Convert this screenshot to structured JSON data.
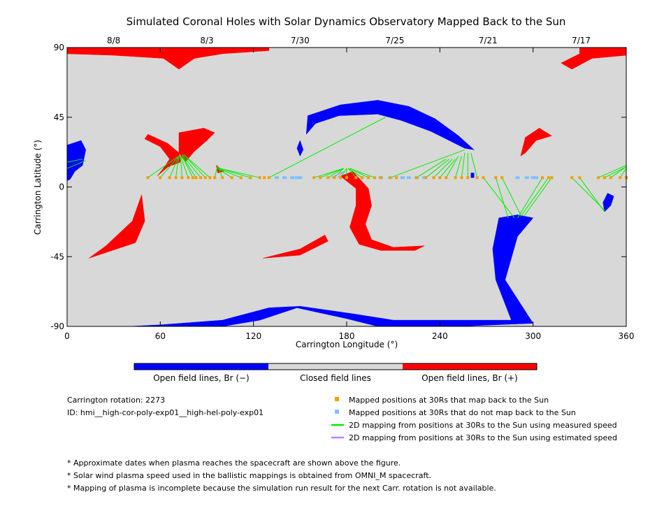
{
  "chart_data": {
    "type": "map",
    "title": "Simulated Coronal Holes with Solar Dynamics Observatory Mapped Back to the Sun",
    "xlabel": "Carrington Longitude (°)",
    "ylabel": "Carrington Latitude (°)",
    "xlim": [
      0,
      360
    ],
    "ylim": [
      -90,
      90
    ],
    "x_ticks": [
      0,
      60,
      120,
      180,
      240,
      300,
      360
    ],
    "y_ticks": [
      -90,
      -45,
      0,
      45,
      90
    ],
    "top_axis_dates": [
      {
        "label": "8/8",
        "lon": 30
      },
      {
        "label": "8/3",
        "lon": 90
      },
      {
        "label": "7/30",
        "lon": 150
      },
      {
        "label": "7/25",
        "lon": 211
      },
      {
        "label": "7/21",
        "lon": 271
      },
      {
        "label": "7/17",
        "lon": 331
      }
    ],
    "background_color": "#d8d8d8",
    "colorbar": {
      "segments": [
        {
          "label": "Open field lines, Br (−)",
          "color": "#0000ff"
        },
        {
          "label": "Closed field lines",
          "color": "#d8d8d8"
        },
        {
          "label": "Open field lines, Br (+)",
          "color": "#ff0000"
        }
      ]
    },
    "coronal_holes": [
      {
        "polarity": "positive",
        "color": "#ff0000",
        "points": [
          [
            0,
            90
          ],
          [
            130,
            90
          ],
          [
            130,
            88
          ],
          [
            100,
            86
          ],
          [
            82,
            83
          ],
          [
            72,
            76
          ],
          [
            62,
            83
          ],
          [
            30,
            85
          ],
          [
            0,
            86
          ]
        ]
      },
      {
        "polarity": "positive",
        "color": "#ff0000",
        "points": [
          [
            330,
            90
          ],
          [
            360,
            90
          ],
          [
            360,
            85
          ],
          [
            338,
            83
          ],
          [
            325,
            76
          ],
          [
            318,
            80
          ],
          [
            330,
            86
          ]
        ]
      },
      {
        "polarity": "positive",
        "color": "#ff0000",
        "points": [
          [
            52,
            34
          ],
          [
            65,
            28
          ],
          [
            72,
            22
          ],
          [
            73,
            16
          ],
          [
            65,
            13
          ],
          [
            58,
            7
          ],
          [
            62,
            12
          ],
          [
            66,
            18
          ],
          [
            60,
            26
          ],
          [
            50,
            31
          ]
        ]
      },
      {
        "polarity": "positive",
        "color": "#ff0000",
        "points": [
          [
            72,
            35
          ],
          [
            88,
            38
          ],
          [
            95,
            35
          ],
          [
            90,
            30
          ],
          [
            82,
            23
          ],
          [
            76,
            16
          ],
          [
            72,
            22
          ]
        ]
      },
      {
        "polarity": "positive",
        "color": "#ff0000",
        "points": [
          [
            48,
            -5
          ],
          [
            42,
            -22
          ],
          [
            25,
            -38
          ],
          [
            14,
            -46
          ],
          [
            26,
            -42
          ],
          [
            44,
            -36
          ],
          [
            50,
            -22
          ]
        ]
      },
      {
        "polarity": "positive",
        "color": "#ff0000",
        "points": [
          [
            126,
            -46
          ],
          [
            150,
            -40
          ],
          [
            166,
            -31
          ],
          [
            168,
            -35
          ],
          [
            150,
            -44
          ]
        ]
      },
      {
        "polarity": "positive",
        "color": "#ff0000",
        "points": [
          [
            176,
            7
          ],
          [
            184,
            10
          ],
          [
            194,
            -1
          ],
          [
            196,
            -12
          ],
          [
            192,
            -24
          ],
          [
            196,
            -34
          ],
          [
            210,
            -39
          ],
          [
            230,
            -38
          ],
          [
            224,
            -41
          ],
          [
            202,
            -41
          ],
          [
            188,
            -37
          ],
          [
            182,
            -26
          ],
          [
            186,
            -12
          ],
          [
            186,
            -1
          ]
        ]
      },
      {
        "polarity": "positive",
        "color": "#ff0000",
        "points": [
          [
            295,
            32
          ],
          [
            304,
            38
          ],
          [
            312,
            33
          ],
          [
            302,
            30
          ],
          [
            295,
            22
          ],
          [
            292,
            20
          ]
        ]
      },
      {
        "polarity": "positive",
        "color": "#ff0000",
        "points": [
          [
            96,
            14
          ],
          [
            101,
            10
          ],
          [
            97,
            9
          ]
        ]
      },
      {
        "polarity": "negative",
        "color": "#0000ff",
        "points": [
          [
            0,
            27
          ],
          [
            9,
            30
          ],
          [
            12,
            24
          ],
          [
            10,
            14
          ],
          [
            5,
            10
          ],
          [
            2,
            5
          ],
          [
            0,
            4
          ]
        ]
      },
      {
        "polarity": "negative",
        "color": "#0000ff",
        "points": [
          [
            155,
            46
          ],
          [
            176,
            53
          ],
          [
            200,
            56
          ],
          [
            220,
            52
          ],
          [
            237,
            44
          ],
          [
            252,
            33
          ],
          [
            262,
            24
          ],
          [
            256,
            25
          ],
          [
            246,
            30
          ],
          [
            234,
            36
          ],
          [
            215,
            43
          ],
          [
            200,
            47
          ],
          [
            175,
            46
          ],
          [
            160,
            41
          ],
          [
            154,
            34
          ]
        ]
      },
      {
        "polarity": "negative",
        "color": "#0000ff",
        "points": [
          [
            150,
            30
          ],
          [
            152,
            24
          ],
          [
            150,
            20
          ],
          [
            148,
            25
          ]
        ]
      },
      {
        "polarity": "negative",
        "color": "#0000ff",
        "points": [
          [
            278,
            -20
          ],
          [
            290,
            -18
          ],
          [
            300,
            -20
          ],
          [
            290,
            -32
          ],
          [
            282,
            -60
          ],
          [
            300,
            -88
          ],
          [
            250,
            -90
          ],
          [
            200,
            -90
          ],
          [
            180,
            -85
          ],
          [
            148,
            -78
          ],
          [
            124,
            -86
          ],
          [
            100,
            -90
          ],
          [
            40,
            -90
          ],
          [
            60,
            -89
          ],
          [
            100,
            -86
          ],
          [
            130,
            -78
          ],
          [
            150,
            -77
          ],
          [
            185,
            -82
          ],
          [
            210,
            -86
          ],
          [
            250,
            -86
          ],
          [
            286,
            -86
          ],
          [
            276,
            -60
          ],
          [
            274,
            -40
          ]
        ]
      },
      {
        "polarity": "negative",
        "color": "#0000ff",
        "points": [
          [
            346,
            -16
          ],
          [
            350,
            -12
          ],
          [
            352,
            -6
          ],
          [
            348,
            -4
          ],
          [
            345,
            -10
          ]
        ]
      },
      {
        "polarity": "negative",
        "color": "#0000ff",
        "points": [
          [
            260,
            9
          ],
          [
            262,
            9
          ],
          [
            262,
            6
          ],
          [
            260,
            6
          ]
        ]
      }
    ],
    "mapped_points_map_back": {
      "color": "#f0a000",
      "lon": [
        52,
        60,
        66,
        70,
        74,
        78,
        81,
        83,
        86,
        89,
        92,
        95,
        100,
        106,
        112,
        118,
        124,
        127,
        130,
        159,
        163,
        168,
        172,
        176,
        180,
        186,
        190,
        194,
        198,
        202,
        208,
        212,
        225,
        231,
        236,
        240,
        244,
        250,
        254,
        258,
        264,
        268,
        276,
        280,
        306,
        310,
        312,
        325,
        330,
        342,
        346,
        350,
        356,
        360
      ],
      "lat": [
        6,
        6,
        6,
        6,
        6,
        6,
        6,
        6,
        6,
        6,
        6,
        6,
        6,
        6,
        6,
        6,
        6,
        6,
        6,
        6,
        6,
        6,
        6,
        6,
        6,
        6,
        6,
        6,
        6,
        6,
        6,
        6,
        6,
        6,
        6,
        6,
        6,
        6,
        6,
        6,
        6,
        6,
        6,
        6,
        6,
        6,
        6,
        6,
        6,
        6,
        6,
        6,
        6,
        6
      ]
    },
    "mapped_points_no_map_back": {
      "color": "#80c0ff",
      "lon": [
        135,
        140,
        145,
        148,
        150,
        202,
        208,
        216,
        220,
        225,
        230,
        290,
        296,
        300,
        302
      ],
      "lat": [
        6,
        6,
        6,
        6,
        6,
        6,
        6,
        6,
        6,
        6,
        6,
        6,
        6,
        6,
        6
      ]
    },
    "mappings_measured_speed": {
      "color": "#00ee00",
      "segments": [
        [
          0,
          12,
          12,
          17
        ],
        [
          0,
          16,
          10,
          18
        ],
        [
          52,
          6,
          72,
          20
        ],
        [
          60,
          6,
          72,
          20
        ],
        [
          66,
          6,
          72,
          20
        ],
        [
          70,
          6,
          72,
          20
        ],
        [
          74,
          6,
          73,
          20
        ],
        [
          78,
          6,
          73,
          20
        ],
        [
          81,
          6,
          74,
          20
        ],
        [
          83,
          6,
          74,
          20
        ],
        [
          86,
          6,
          74,
          21
        ],
        [
          89,
          6,
          75,
          21
        ],
        [
          92,
          6,
          75,
          21
        ],
        [
          95,
          6,
          97,
          14
        ],
        [
          100,
          6,
          97,
          13
        ],
        [
          106,
          6,
          97,
          12
        ],
        [
          112,
          6,
          97,
          12
        ],
        [
          118,
          6,
          98,
          12
        ],
        [
          124,
          6,
          98,
          12
        ],
        [
          130,
          6,
          205,
          45
        ],
        [
          159,
          6,
          178,
          12
        ],
        [
          163,
          6,
          178,
          12
        ],
        [
          168,
          6,
          178,
          12
        ],
        [
          172,
          6,
          178,
          12
        ],
        [
          176,
          6,
          180,
          12
        ],
        [
          180,
          6,
          180,
          12
        ],
        [
          186,
          6,
          181,
          12
        ],
        [
          190,
          6,
          181,
          12
        ],
        [
          194,
          6,
          182,
          12
        ],
        [
          198,
          6,
          182,
          12
        ],
        [
          208,
          6,
          256,
          24
        ],
        [
          225,
          6,
          244,
          18
        ],
        [
          231,
          6,
          246,
          18
        ],
        [
          236,
          6,
          248,
          18
        ],
        [
          240,
          6,
          250,
          18
        ],
        [
          244,
          6,
          252,
          20
        ],
        [
          250,
          6,
          254,
          20
        ],
        [
          254,
          6,
          256,
          22
        ],
        [
          258,
          6,
          258,
          22
        ],
        [
          264,
          6,
          260,
          22
        ],
        [
          268,
          6,
          288,
          -20
        ],
        [
          276,
          6,
          284,
          -20
        ],
        [
          280,
          6,
          292,
          -18
        ],
        [
          306,
          6,
          290,
          -20
        ],
        [
          310,
          6,
          292,
          -19
        ],
        [
          312,
          6,
          294,
          -19
        ],
        [
          325,
          6,
          346,
          -15
        ],
        [
          330,
          6,
          346,
          -16
        ],
        [
          342,
          6,
          360,
          14
        ],
        [
          346,
          6,
          360,
          13
        ],
        [
          350,
          6,
          360,
          13
        ],
        [
          356,
          6,
          360,
          12
        ]
      ]
    },
    "mappings_estimated_speed": {
      "color": "#c080ff",
      "segments": [
        [
          170,
          6,
          178,
          10
        ],
        [
          174,
          6,
          178,
          10
        ]
      ]
    },
    "legend": {
      "map_back": "Mapped positions at 30Rs that map back to the Sun",
      "no_map_back": "Mapped positions at 30Rs that do not map back to the Sun",
      "measured_speed": "2D mapping from positions at 30Rs to the Sun using measured speed",
      "estimated_speed": "2D mapping from positions at 30Rs to the Sun using estimated speed"
    }
  },
  "info": {
    "rotation": "Carrington rotation: 2273",
    "id": "ID: hmi__high-cor-poly-exp01__high-hel-poly-exp01"
  },
  "notes": [
    "* Approximate dates when plasma reaches the spacecraft are shown above the figure.",
    "* Solar wind plasma speed used in the ballistic mappings is obtained from OMNI_M spacecraft.",
    "* Mapping of plasma is incomplete because the simulation run result for the next Carr. rotation is not available."
  ]
}
